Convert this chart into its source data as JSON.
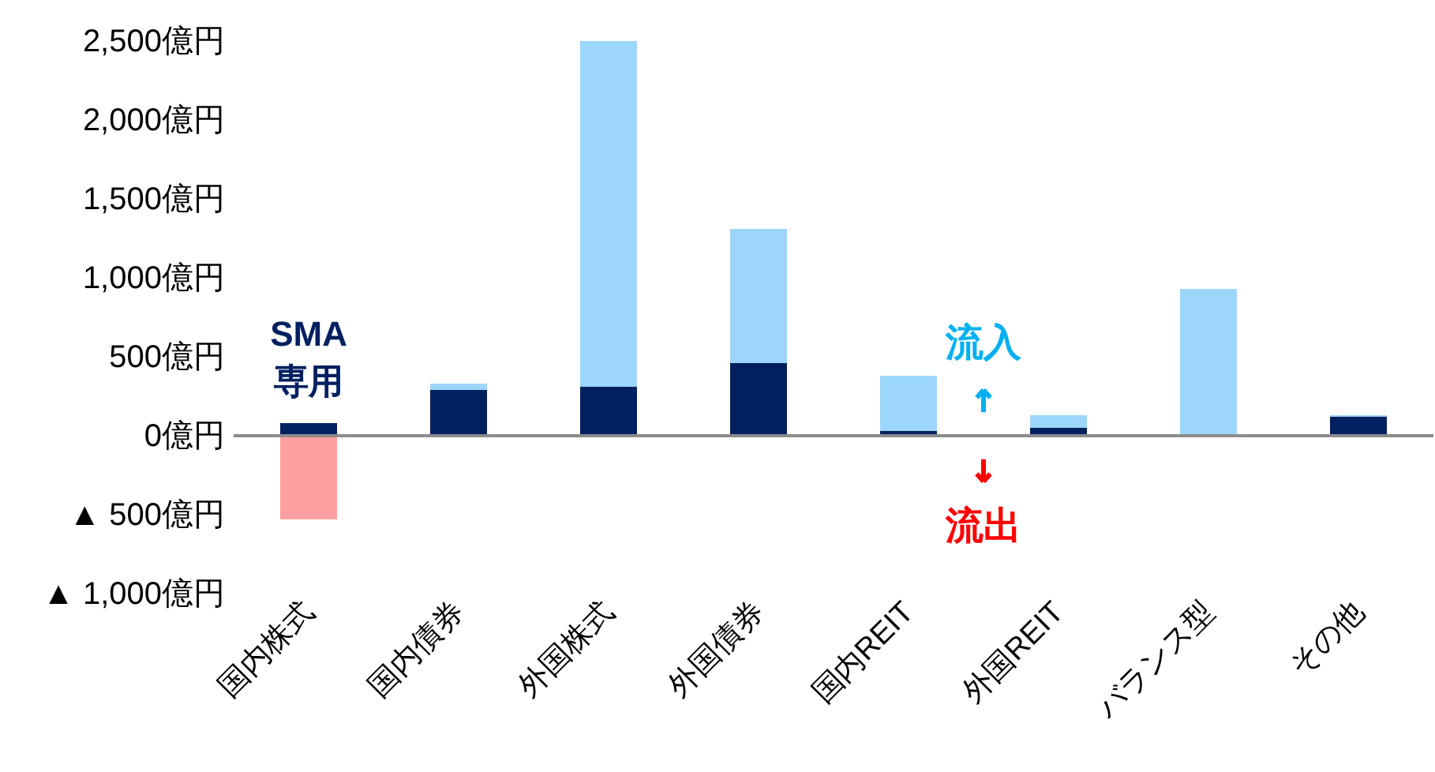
{
  "chart_data": {
    "type": "bar",
    "stacked": true,
    "categories": [
      "国内株式",
      "国内債券",
      "外国株式",
      "外国債券",
      "国内REIT",
      "外国REIT",
      "バランス型",
      "その他"
    ],
    "series": [
      {
        "name": "SMA 専用",
        "color": "#002060",
        "values": [
          80,
          290,
          310,
          460,
          30,
          50,
          0,
          120
        ]
      },
      {
        "colors": [
          "#ffa0a0",
          "#9dd6fb",
          "#9dd6fb",
          "#9dd6fb",
          "#9dd6fb",
          "#9dd6fb",
          "#9dd6fb",
          "#9dd6fb"
        ],
        "values": [
          -530,
          40,
          2190,
          850,
          350,
          80,
          930,
          10
        ]
      }
    ],
    "ylim": [
      -1000,
      2500
    ],
    "yticks": [
      {
        "value": -1000,
        "label": "▲ 1,000億円"
      },
      {
        "value": -500,
        "label": "▲ 500億円"
      },
      {
        "value": 0,
        "label": "0億円"
      },
      {
        "value": 500,
        "label": "500億円"
      },
      {
        "value": 1000,
        "label": "1,000億円"
      },
      {
        "value": 1500,
        "label": "1,500億円"
      },
      {
        "value": 2000,
        "label": "2,000億円"
      },
      {
        "value": 2500,
        "label": "2,500億円"
      }
    ],
    "ref_lines": [
      {
        "axis": "y",
        "value": 0,
        "color": "#8c8c8c"
      }
    ],
    "annotations": [
      "流入",
      "流出"
    ],
    "grid": false
  }
}
